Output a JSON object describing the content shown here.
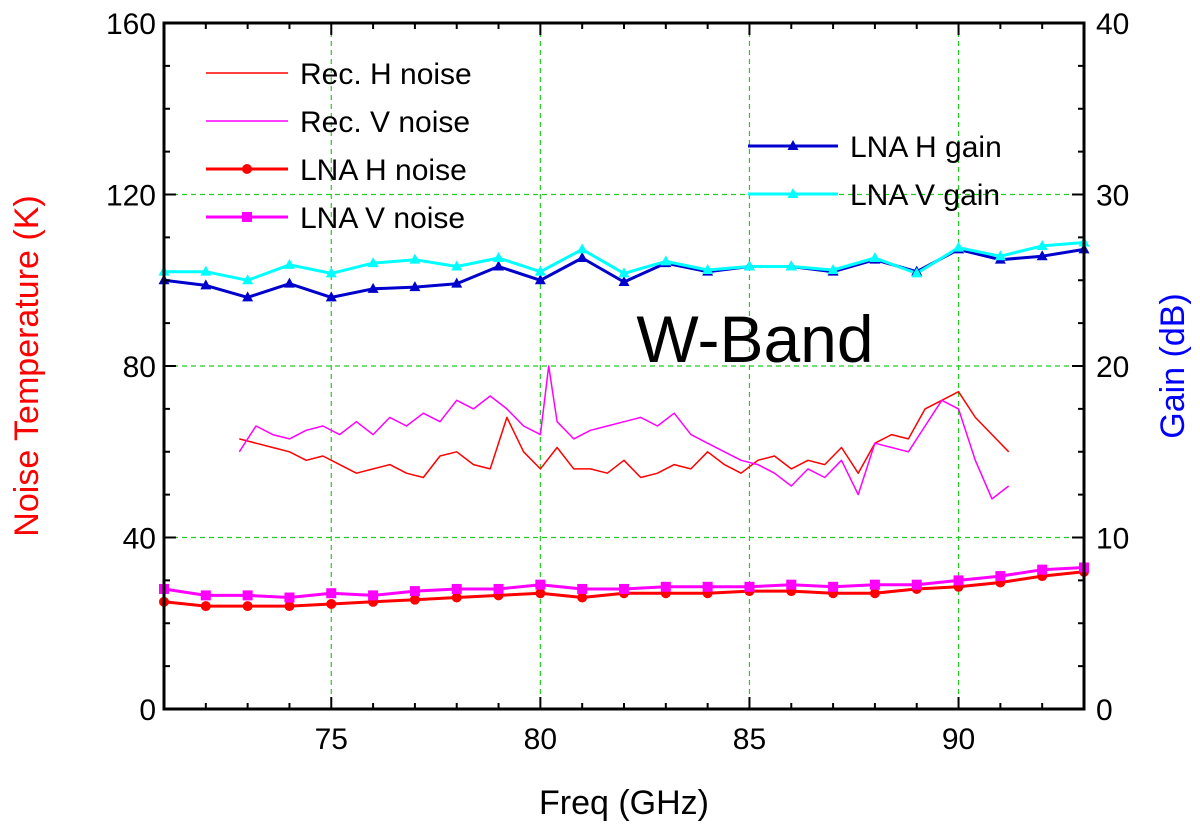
{
  "chart_data": {
    "type": "line",
    "title": "",
    "annotation": "W-Band",
    "xlabel": "Freq (GHz)",
    "ylabel_left": "Noise Temperature (K)",
    "ylabel_right": "Gain (dB)",
    "xlim": [
      71,
      93
    ],
    "ylim_left": [
      0,
      160
    ],
    "ylim_right": [
      0,
      40
    ],
    "x_ticks": [
      75,
      80,
      85,
      90
    ],
    "y_ticks_left": [
      0,
      40,
      80,
      120,
      160
    ],
    "y_ticks_right": [
      0,
      10,
      20,
      30,
      40
    ],
    "grid": true,
    "legend_left": [
      "Rec. H noise",
      "Rec. V noise",
      "LNA H noise",
      "LNA V noise"
    ],
    "legend_right": [
      "LNA H gain",
      "LNA V gain"
    ],
    "colors": {
      "rec_h": "#ff0000",
      "rec_v": "#ff00ff",
      "lna_h_noise": "#ff0000",
      "lna_v_noise": "#ff00ff",
      "lna_h_gain": "#0000cc",
      "lna_v_gain": "#00ffff",
      "left_axis_title": "#ff0000",
      "right_axis_title": "#0000ff",
      "grid": "#22cc22"
    },
    "series": [
      {
        "name": "Rec. H noise",
        "axis": "left",
        "marker": "none",
        "color_key": "rec_h",
        "x": [
          72.8,
          73.2,
          73.6,
          74.0,
          74.4,
          74.8,
          75.2,
          75.6,
          76.0,
          76.4,
          76.8,
          77.2,
          77.6,
          78.0,
          78.4,
          78.8,
          79.2,
          79.6,
          80.0,
          80.4,
          80.8,
          81.2,
          81.6,
          82.0,
          82.4,
          82.8,
          83.2,
          83.6,
          84.0,
          84.4,
          84.8,
          85.2,
          85.6,
          86.0,
          86.4,
          86.8,
          87.2,
          87.6,
          88.0,
          88.4,
          88.8,
          89.2,
          89.6,
          90.0,
          90.4,
          90.8,
          91.2
        ],
        "y": [
          63,
          62,
          61,
          60,
          58,
          59,
          57,
          55,
          56,
          57,
          55,
          54,
          59,
          60,
          57,
          56,
          68,
          60,
          56,
          61,
          56,
          56,
          55,
          58,
          54,
          55,
          57,
          56,
          60,
          57,
          55,
          58,
          59,
          56,
          58,
          57,
          61,
          55,
          62,
          64,
          63,
          70,
          72,
          74,
          68,
          64,
          60
        ]
      },
      {
        "name": "Rec. V noise",
        "axis": "left",
        "marker": "none",
        "color_key": "rec_v",
        "x": [
          72.8,
          73.2,
          73.6,
          74.0,
          74.4,
          74.8,
          75.2,
          75.6,
          76.0,
          76.4,
          76.8,
          77.2,
          77.6,
          78.0,
          78.4,
          78.8,
          79.2,
          79.6,
          80.0,
          80.2,
          80.4,
          80.8,
          81.2,
          81.6,
          82.0,
          82.4,
          82.8,
          83.2,
          83.6,
          84.0,
          84.4,
          84.8,
          85.2,
          85.6,
          86.0,
          86.4,
          86.8,
          87.2,
          87.6,
          88.0,
          88.4,
          88.8,
          89.2,
          89.6,
          90.0,
          90.4,
          90.8,
          91.2
        ],
        "y": [
          60,
          66,
          64,
          63,
          65,
          66,
          64,
          67,
          64,
          68,
          66,
          69,
          67,
          72,
          70,
          73,
          70,
          66,
          64,
          80,
          67,
          63,
          65,
          66,
          67,
          68,
          66,
          69,
          64,
          62,
          60,
          58,
          57,
          55,
          52,
          56,
          54,
          58,
          50,
          62,
          61,
          60,
          66,
          72,
          70,
          58,
          49,
          52
        ]
      },
      {
        "name": "LNA H noise",
        "axis": "left",
        "marker": "circle",
        "color_key": "lna_h_noise",
        "x": [
          71,
          72,
          73,
          74,
          75,
          76,
          77,
          78,
          79,
          80,
          81,
          82,
          83,
          84,
          85,
          86,
          87,
          88,
          89,
          90,
          91,
          92,
          93
        ],
        "y": [
          25,
          24,
          24,
          24,
          24.5,
          25,
          25.5,
          26,
          26.5,
          27,
          26,
          27,
          27,
          27,
          27.5,
          27.5,
          27,
          27,
          28,
          28.5,
          29.5,
          31,
          32
        ]
      },
      {
        "name": "LNA V noise",
        "axis": "left",
        "marker": "square",
        "color_key": "lna_v_noise",
        "x": [
          71,
          72,
          73,
          74,
          75,
          76,
          77,
          78,
          79,
          80,
          81,
          82,
          83,
          84,
          85,
          86,
          87,
          88,
          89,
          90,
          91,
          92,
          93
        ],
        "y": [
          28,
          26.5,
          26.5,
          26,
          27,
          26.5,
          27.5,
          28,
          28,
          29,
          28,
          28,
          28.5,
          28.5,
          28.5,
          29,
          28.5,
          29,
          29,
          30,
          31,
          32.5,
          33
        ]
      },
      {
        "name": "LNA H gain",
        "axis": "right",
        "marker": "triangle",
        "color_key": "lna_h_gain",
        "x": [
          71,
          72,
          73,
          74,
          75,
          76,
          77,
          78,
          79,
          80,
          81,
          82,
          83,
          84,
          85,
          86,
          87,
          88,
          89,
          90,
          91,
          92,
          93
        ],
        "y": [
          25,
          24.7,
          24,
          24.8,
          24,
          24.5,
          24.6,
          24.8,
          25.8,
          25,
          26.3,
          24.9,
          26,
          25.5,
          25.8,
          25.8,
          25.5,
          26.2,
          25.5,
          26.8,
          26.2,
          26.4,
          26.8
        ]
      },
      {
        "name": "LNA V gain",
        "axis": "right",
        "marker": "triangle",
        "color_key": "lna_v_gain",
        "x": [
          71,
          72,
          73,
          74,
          75,
          76,
          77,
          78,
          79,
          80,
          81,
          82,
          83,
          84,
          85,
          86,
          87,
          88,
          89,
          90,
          91,
          92,
          93
        ],
        "y": [
          25.5,
          25.5,
          25,
          25.9,
          25.4,
          26,
          26.2,
          25.8,
          26.3,
          25.5,
          26.8,
          25.4,
          26.1,
          25.6,
          25.8,
          25.8,
          25.6,
          26.3,
          25.4,
          26.9,
          26.4,
          27,
          27.2
        ]
      }
    ]
  }
}
